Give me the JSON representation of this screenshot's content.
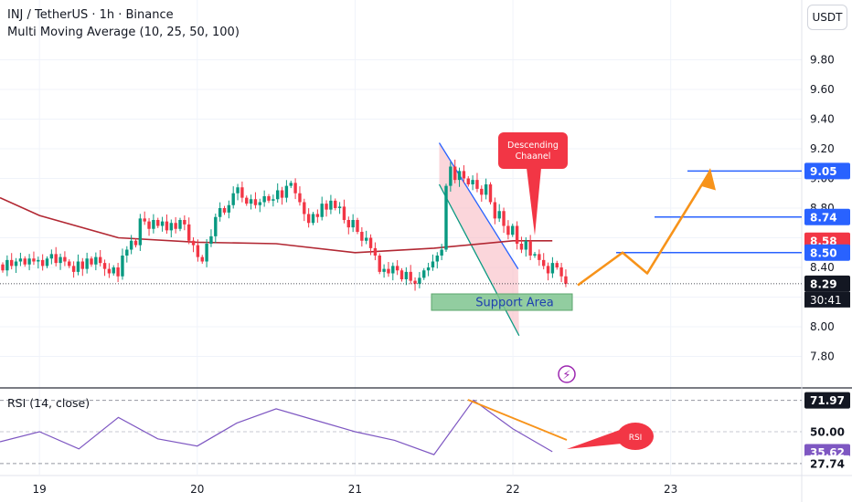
{
  "header": {
    "symbol_line": "INJ / TetherUS · 1h · Binance",
    "indicator_line": "Multi Moving Average (10, 25, 50, 100)",
    "currency_button": "USDT"
  },
  "rsi_panel": {
    "label": "RSI (14, close)"
  },
  "colors": {
    "up": "#089981",
    "down": "#f23645",
    "ma": "#b22833",
    "rsi_line": "#7e57c2",
    "blue_level": "#2962ff",
    "projection": "#f7931a",
    "support_fill": "#7fc48f",
    "support_text": "#1e40af",
    "channel_blue": "#2962ff",
    "channel_green": "#089981"
  },
  "icons": {
    "alert": "lightning-icon"
  },
  "chart_data": [
    {
      "type": "candlestick",
      "title": "INJ / TetherUS · 1h · Binance",
      "ylim": [
        7.66,
        10.04
      ],
      "xlim": [
        "18-18:00",
        "23-12:00"
      ],
      "x_ticks": [
        {
          "x": "19-00:00",
          "label": "19"
        },
        {
          "x": "20-00:00",
          "label": "20"
        },
        {
          "x": "21-00:00",
          "label": "21"
        },
        {
          "x": "22-00:00",
          "label": "22"
        },
        {
          "x": "23-00:00",
          "label": "23"
        }
      ],
      "y_ticks": [
        7.8,
        8.0,
        8.2,
        8.4,
        8.6,
        8.8,
        9.0,
        9.2,
        9.4,
        9.6,
        9.8
      ],
      "y_tick_labels": [
        "7.80",
        "8.00",
        "",
        "8.40",
        "",
        "8.80",
        "9.00",
        "9.20",
        "9.40",
        "9.60",
        "9.80"
      ],
      "series": [
        {
          "name": "INJ/USDT",
          "close": [
            8.38,
            8.45,
            8.41,
            8.44,
            8.46,
            8.42,
            8.46,
            8.44,
            8.45,
            8.41,
            8.46,
            8.49,
            8.43,
            8.47,
            8.44,
            8.41,
            8.37,
            8.44,
            8.39,
            8.46,
            8.42,
            8.47,
            8.43,
            8.39,
            8.36,
            8.4,
            8.34,
            8.48,
            8.52,
            8.58,
            8.55,
            8.73,
            8.71,
            8.66,
            8.72,
            8.68,
            8.71,
            8.65,
            8.7,
            8.66,
            8.72,
            8.69,
            8.58,
            8.55,
            8.47,
            8.44,
            8.56,
            8.61,
            8.74,
            8.8,
            8.77,
            8.82,
            8.9,
            8.94,
            8.87,
            8.83,
            8.86,
            8.82,
            8.84,
            8.88,
            8.85,
            8.86,
            8.92,
            8.87,
            8.95,
            8.97,
            8.9,
            8.84,
            8.76,
            8.7,
            8.76,
            8.74,
            8.83,
            8.79,
            8.85,
            8.8,
            8.81,
            8.72,
            8.67,
            8.72,
            8.64,
            8.58,
            8.6,
            8.53,
            8.48,
            8.37,
            8.39,
            8.36,
            8.41,
            8.38,
            8.32,
            8.37,
            8.31,
            8.29,
            8.33,
            8.38,
            8.4,
            8.44,
            8.48,
            8.52,
            8.95,
            9.08,
            8.99,
            9.05,
            9.0,
            8.96,
            8.99,
            8.93,
            8.89,
            8.96,
            8.84,
            8.73,
            8.78,
            8.68,
            8.62,
            8.68,
            8.56,
            8.52,
            8.58,
            8.48,
            8.49,
            8.45,
            8.41,
            8.36,
            8.43,
            8.4,
            8.34,
            8.29
          ]
        },
        {
          "name": "Multi Moving Average",
          "x": [
            "18-18:00",
            "19-00:00",
            "19-12:00",
            "20-00:00",
            "20-12:00",
            "21-00:00",
            "21-12:00",
            "22-00:00",
            "22-06:00"
          ],
          "values": [
            8.87,
            8.75,
            8.6,
            8.57,
            8.56,
            8.5,
            8.53,
            8.58,
            8.58
          ]
        }
      ]
    },
    {
      "type": "line",
      "title": "RSI (14, close)",
      "ylim": [
        20,
        80
      ],
      "y_tick_labels": [
        "71.97",
        "50.00",
        "35.62",
        "27.74"
      ],
      "series": [
        {
          "name": "RSI",
          "x": [
            "18-18:00",
            "19-00:00",
            "19-06:00",
            "19-12:00",
            "19-18:00",
            "20-00:00",
            "20-06:00",
            "20-12:00",
            "20-18:00",
            "21-00:00",
            "21-06:00",
            "21-12:00",
            "21-18:00",
            "22-00:00",
            "22-06:00"
          ],
          "values": [
            43,
            50,
            38,
            60,
            45,
            40,
            56,
            66,
            58,
            50,
            44,
            34,
            72,
            52,
            36
          ]
        }
      ]
    }
  ],
  "annotations": {
    "descending_channel": "Descending\nChaanel",
    "support_area": "Support Area",
    "rsi_note": "RSI"
  },
  "price_axis": {
    "levels": [
      {
        "value": 9.05,
        "label": "9.05",
        "style": "blue"
      },
      {
        "value": 8.74,
        "label": "8.74",
        "style": "blue"
      },
      {
        "value": 8.58,
        "label": "8.58",
        "style": "red"
      },
      {
        "value": 8.5,
        "label": "8.50",
        "style": "blue"
      },
      {
        "value": 8.29,
        "label": "8.29",
        "style": "dark"
      }
    ],
    "countdown": "30:41",
    "rsi_levels": [
      {
        "label": "71.97",
        "style": "dark"
      },
      {
        "label": "50.00",
        "style": "light"
      },
      {
        "label": "35.62",
        "style": "purple"
      },
      {
        "label": "27.74",
        "style": "light"
      }
    ]
  }
}
